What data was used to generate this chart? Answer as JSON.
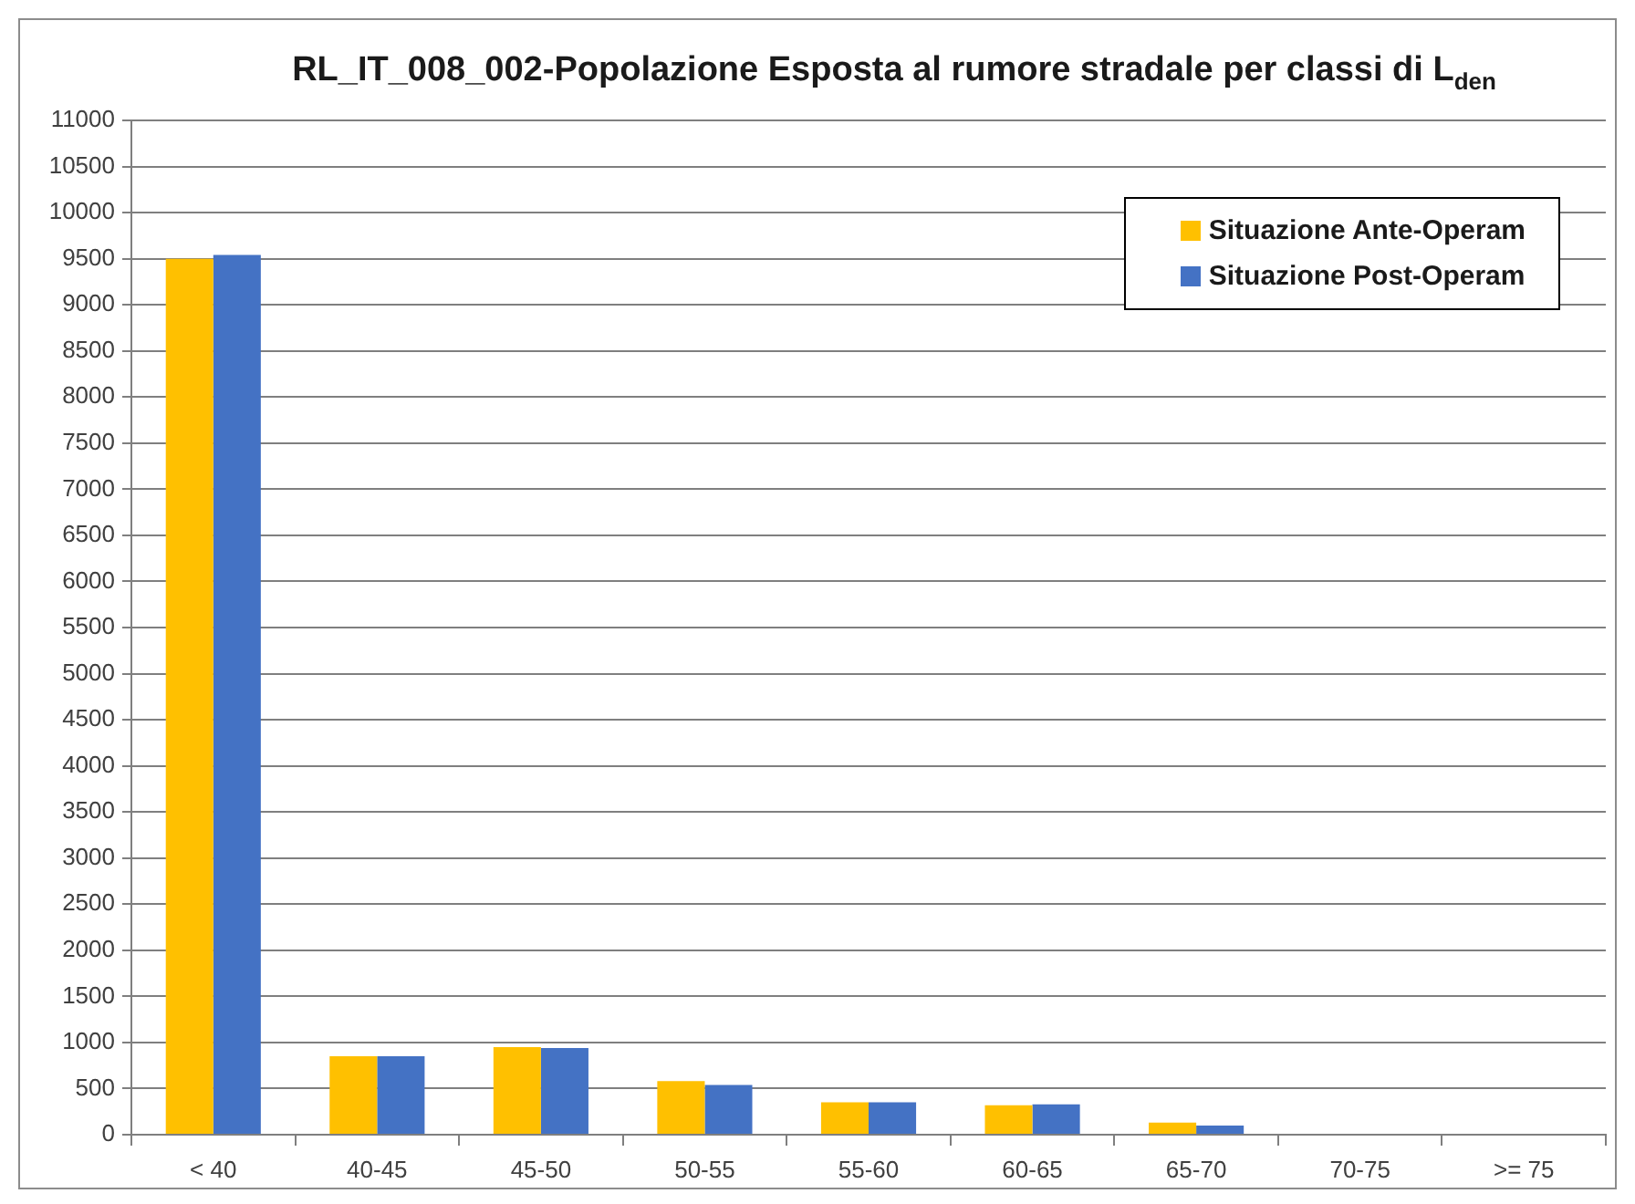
{
  "chart_data": {
    "type": "bar",
    "title": "RL_IT_008_002-Popolazione Esposta al rumore stradale per classi di L$_{den}$",
    "categories": [
      "< 40",
      "40-45",
      "45-50",
      "50-55",
      "55-60",
      "60-65",
      "65-70",
      "70-75",
      ">= 75"
    ],
    "series": [
      {
        "name": "Situazione Ante-Operam",
        "color": "#ffc000",
        "values": [
          9500,
          850,
          950,
          580,
          350,
          320,
          130,
          0,
          0
        ]
      },
      {
        "name": "Situazione Post-Operam",
        "color": "#4472c4",
        "values": [
          9540,
          850,
          940,
          540,
          350,
          330,
          100,
          0,
          0
        ]
      }
    ],
    "ylim": [
      0,
      11000
    ],
    "yticks": [
      0,
      500,
      1000,
      1500,
      2000,
      2500,
      3000,
      3500,
      4000,
      4500,
      5000,
      5500,
      6000,
      6500,
      7000,
      7500,
      8000,
      8500,
      9000,
      9500,
      10000,
      10500,
      11000
    ],
    "grid": "y",
    "legend": "top right"
  }
}
